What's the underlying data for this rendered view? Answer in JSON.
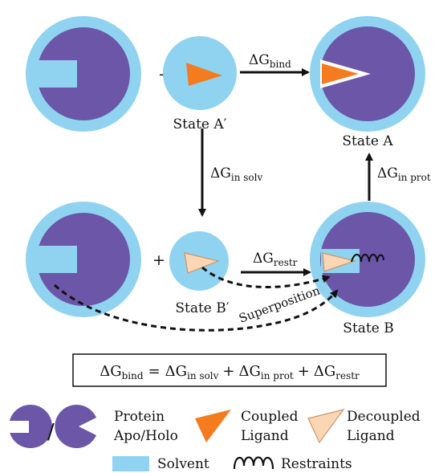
{
  "colors": {
    "solvent": "#8fd3f0",
    "protein": "#6b56a8",
    "coupled_ligand": "#f47b1e",
    "decoupled_ligand": "#fbd6b4",
    "decoupled_outline": "#c9966a",
    "text": "#111111"
  },
  "states": {
    "a_prime": "State A′",
    "a": "State A",
    "b_prime": "State B′",
    "b": "State B"
  },
  "arrows": {
    "bind": {
      "delta": "ΔG",
      "sub": "bind"
    },
    "in_solv": {
      "delta": "ΔG",
      "sub": "in solv"
    },
    "in_prot": {
      "delta": "ΔG",
      "sub": "in prot"
    },
    "restr": {
      "delta": "ΔG",
      "sub": "restr"
    }
  },
  "operators": {
    "plus": "+",
    "equals": "=",
    "slash": "/"
  },
  "superposition": "Superposition",
  "equation": {
    "lhs_sub": "bind",
    "t1_sub": "in solv",
    "t2_sub": "in prot",
    "t3_sub": "restr",
    "delta": "ΔG",
    "plus": "+",
    "equals": "="
  },
  "legend": {
    "protein_line1": "Protein",
    "protein_line2": "Apo/Holo",
    "coupled_line1": "Coupled",
    "coupled_line2": "Ligand",
    "decoupled_line1": "Decoupled",
    "decoupled_line2": "Ligand",
    "solvent": "Solvent",
    "restraints": "Restraints"
  }
}
